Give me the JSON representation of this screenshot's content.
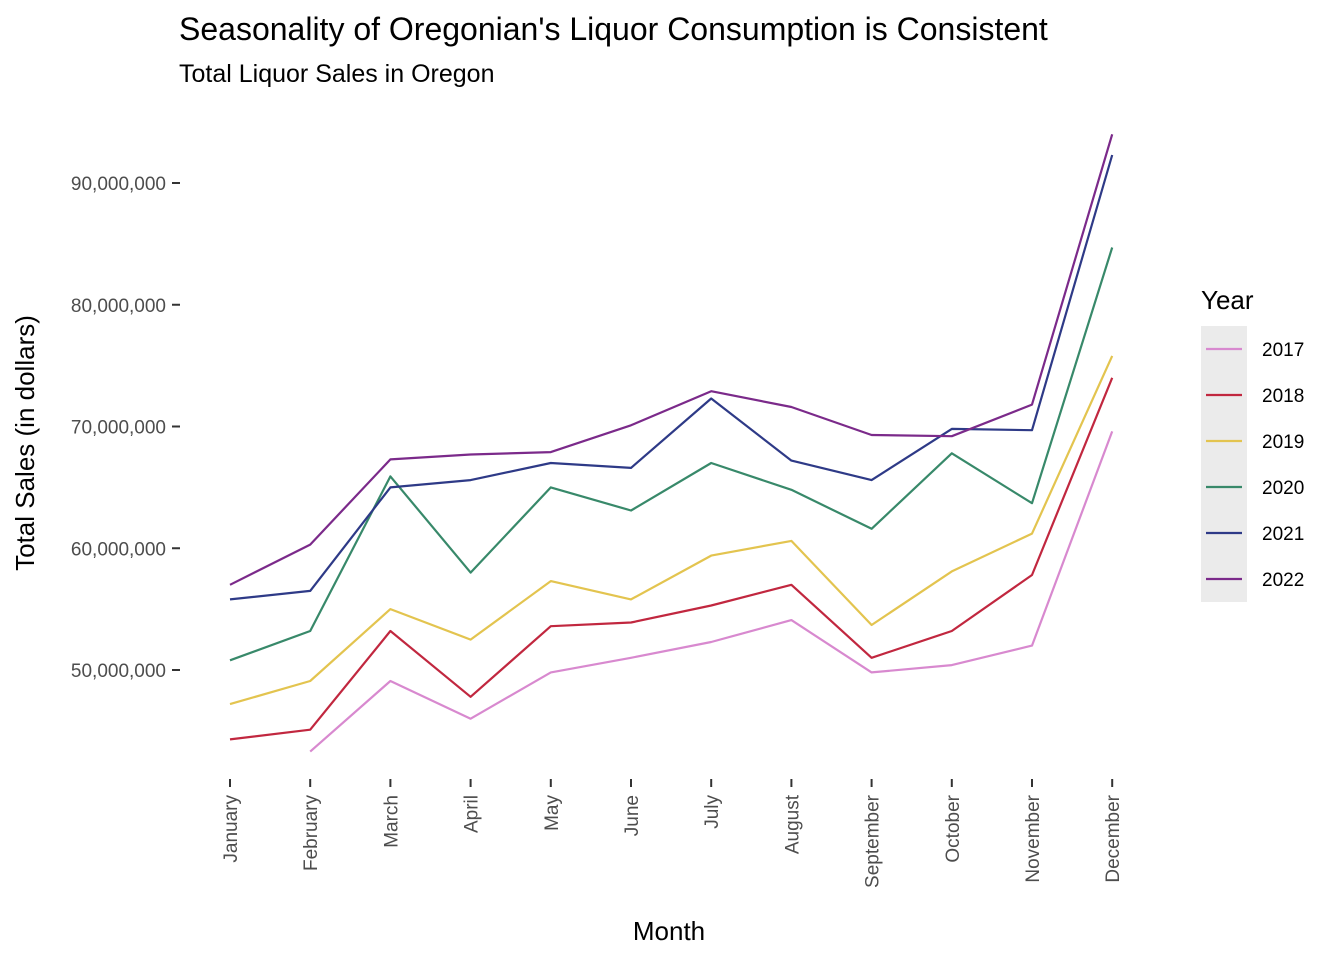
{
  "chart_data": {
    "type": "line",
    "title": "Seasonality of Oregonian's Liquor Consumption is Consistent",
    "subtitle": "Total Liquor Sales in Oregon",
    "xlabel": "Month",
    "ylabel": "Total Sales (in dollars)",
    "categories": [
      "January",
      "February",
      "March",
      "April",
      "May",
      "June",
      "July",
      "August",
      "September",
      "October",
      "November",
      "December"
    ],
    "yticks": [
      {
        "value": 50000000,
        "label": "50,000,000"
      },
      {
        "value": 60000000,
        "label": "60,000,000"
      },
      {
        "value": 70000000,
        "label": "70,000,000"
      },
      {
        "value": 80000000,
        "label": "80,000,000"
      },
      {
        "value": 90000000,
        "label": "90,000,000"
      }
    ],
    "ylim": [
      42500000,
      95000000
    ],
    "grid": false,
    "legend": {
      "title": "Year",
      "placement": "right",
      "background": "#ebebeb"
    },
    "series": [
      {
        "name": "2017",
        "color": "#d889cf",
        "values": [
          null,
          43300000,
          49100000,
          46000000,
          49800000,
          51000000,
          52300000,
          54100000,
          49800000,
          50400000,
          52000000,
          69600000
        ]
      },
      {
        "name": "2018",
        "color": "#c1273f",
        "values": [
          44300000,
          45100000,
          53200000,
          47800000,
          53600000,
          53900000,
          55300000,
          57000000,
          51000000,
          53200000,
          57800000,
          74000000
        ]
      },
      {
        "name": "2019",
        "color": "#e3c44f",
        "values": [
          47200000,
          49100000,
          55000000,
          52500000,
          57300000,
          55800000,
          59400000,
          60600000,
          53700000,
          58100000,
          61200000,
          75800000
        ]
      },
      {
        "name": "2020",
        "color": "#38896a",
        "values": [
          50800000,
          53200000,
          65900000,
          58000000,
          65000000,
          63100000,
          67000000,
          64800000,
          61600000,
          67800000,
          63700000,
          84700000
        ]
      },
      {
        "name": "2021",
        "color": "#2e3a87",
        "values": [
          55800000,
          56500000,
          65000000,
          65600000,
          67000000,
          66600000,
          72300000,
          67200000,
          65600000,
          69800000,
          69700000,
          92300000
        ]
      },
      {
        "name": "2022",
        "color": "#7b2a8a",
        "values": [
          57000000,
          60300000,
          67300000,
          67700000,
          67900000,
          70100000,
          72900000,
          71600000,
          69300000,
          69200000,
          71800000,
          94000000
        ]
      }
    ]
  }
}
